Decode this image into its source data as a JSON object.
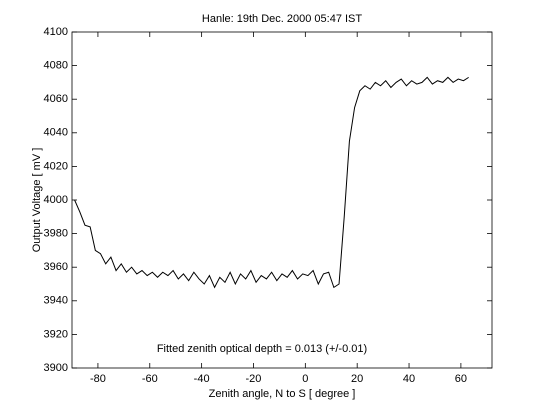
{
  "chart_data": {
    "type": "line",
    "title": "Hanle: 19th Dec. 2000 05:47 IST",
    "x_label": "Zenith angle,  N to S [ degree ]",
    "y_label": "Output Voltage [ mV ]",
    "annotation": "Fitted zenith optical depth = 0.013 (+/-0.01)",
    "x": [
      -89,
      -87,
      -85,
      -83,
      -81,
      -79,
      -77,
      -75,
      -73,
      -71,
      -69,
      -67,
      -65,
      -63,
      -61,
      -59,
      -57,
      -55,
      -53,
      -51,
      -49,
      -47,
      -45,
      -43,
      -41,
      -39,
      -37,
      -35,
      -33,
      -31,
      -29,
      -27,
      -25,
      -23,
      -21,
      -19,
      -17,
      -15,
      -13,
      -11,
      -9,
      -7,
      -5,
      -3,
      -1,
      1,
      3,
      5,
      7,
      9,
      11,
      13,
      15,
      17,
      19,
      21,
      23,
      25,
      27,
      29,
      31,
      33,
      35,
      37,
      39,
      41,
      43,
      45,
      47,
      49,
      51,
      53,
      55,
      57,
      59,
      61,
      63
    ],
    "series": [
      {
        "name": "Output voltage",
        "color": "#000000",
        "values": [
          4000,
          3993,
          3985,
          3984,
          3970,
          3968,
          3962,
          3966,
          3958,
          3962,
          3957,
          3960,
          3956,
          3958,
          3955,
          3957,
          3954,
          3957,
          3955,
          3958,
          3953,
          3956,
          3952,
          3957,
          3953,
          3950,
          3955,
          3948,
          3954,
          3951,
          3957,
          3950,
          3956,
          3953,
          3958,
          3951,
          3955,
          3953,
          3957,
          3952,
          3956,
          3954,
          3958,
          3953,
          3956,
          3955,
          3958,
          3950,
          3956,
          3957,
          3948,
          3950,
          3990,
          4035,
          4055,
          4065,
          4068,
          4066,
          4070,
          4068,
          4071,
          4067,
          4070,
          4072,
          4068,
          4071,
          4069,
          4070,
          4073,
          4069,
          4071,
          4070,
          4073,
          4070,
          4072,
          4071,
          4073
        ]
      }
    ],
    "xlim": [
      -90,
      72
    ],
    "ylim": [
      3900,
      4100
    ],
    "xticks": [
      -80,
      -60,
      -40,
      -20,
      0,
      20,
      40,
      60
    ],
    "yticks": [
      3900,
      3920,
      3940,
      3960,
      3980,
      4000,
      4020,
      4040,
      4060,
      4080,
      4100
    ],
    "grid": false
  }
}
